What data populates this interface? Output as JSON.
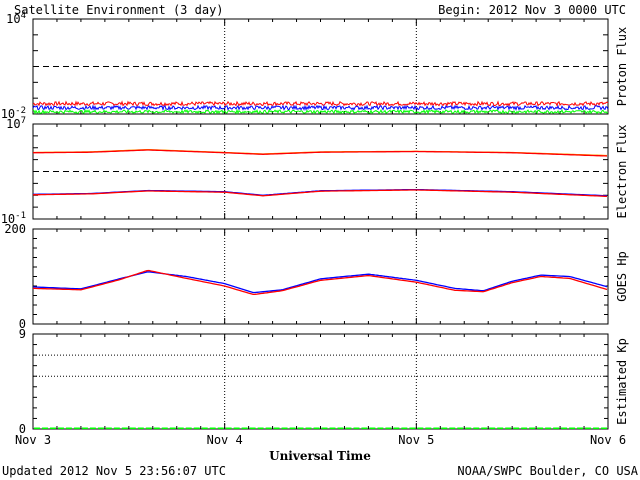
{
  "header": {
    "title": "Satellite Environment (3 day)",
    "begin": "Begin:  2012 Nov 3 0000 UTC"
  },
  "footer": {
    "updated": "Updated 2012 Nov  5 23:56:07 UTC",
    "credit": "NOAA/SWPC Boulder, CO USA"
  },
  "x_axis": {
    "label": "Universal Time",
    "ticks": [
      "Nov 3",
      "Nov 4",
      "Nov 5",
      "Nov 6"
    ]
  },
  "colors": {
    "proton_red": "#ff0000",
    "proton_blue": "#0000ff",
    "proton_green": "#00ff00",
    "electron_orange": "#ff9900",
    "electron_red": "#ff0000",
    "electron_blue": "#0000ff",
    "hp_blue": "#0000ff",
    "hp_red": "#ff0000",
    "kp_green": "#00ff00"
  },
  "chart_data": [
    {
      "type": "line",
      "ylabel": "Proton Flux",
      "scale": "log",
      "yticks": [
        {
          "base": "10",
          "exp": "4",
          "value": 10000
        },
        {
          "base": "10",
          "exp": "-2",
          "value": 0.01
        }
      ],
      "ylim": [
        0.01,
        10000
      ],
      "threshold": 10,
      "x_days": [
        0,
        3
      ],
      "series": [
        {
          "color_key": "proton_red",
          "level": 0.045,
          "noise": 0.12
        },
        {
          "color_key": "proton_blue",
          "level": 0.025,
          "noise": 0.12
        },
        {
          "color_key": "proton_green",
          "level": 0.014,
          "noise": 0.1
        }
      ]
    },
    {
      "type": "line",
      "ylabel": "Electron Flux",
      "scale": "log",
      "yticks": [
        {
          "base": "10",
          "exp": "7",
          "value": 10000000
        },
        {
          "base": "10",
          "exp": "-1",
          "value": 0.1
        }
      ],
      "ylim": [
        0.1,
        10000000
      ],
      "threshold": 1000,
      "x_days": [
        0,
        3
      ],
      "series": [
        {
          "color_key": "electron_orange",
          "x": [
            0,
            0.3,
            0.6,
            1.0,
            1.2,
            1.5,
            2.0,
            2.5,
            3.0
          ],
          "y": [
            40000,
            45000,
            70000,
            40000,
            30000,
            45000,
            50000,
            40000,
            22000
          ]
        },
        {
          "color_key": "electron_red",
          "x": [
            0,
            0.3,
            0.6,
            1.0,
            1.2,
            1.5,
            2.0,
            2.5,
            3.0
          ],
          "y": [
            38000,
            42000,
            65000,
            38000,
            28000,
            42000,
            48000,
            38000,
            20000
          ]
        },
        {
          "color_key": "electron_blue",
          "x": [
            0,
            0.3,
            0.6,
            1.0,
            1.2,
            1.5,
            2.0,
            2.5,
            3.0
          ],
          "y": [
            12,
            14,
            25,
            20,
            10,
            24,
            30,
            20,
            9
          ]
        },
        {
          "color_key": "electron_red",
          "x": [
            0,
            0.3,
            0.6,
            1.0,
            1.2,
            1.5,
            2.0,
            2.5,
            3.0
          ],
          "y": [
            11,
            13,
            23,
            18,
            9,
            22,
            28,
            18,
            8
          ]
        }
      ]
    },
    {
      "type": "line",
      "ylabel": "GOES Hp",
      "scale": "linear",
      "yticks": [
        {
          "label": "200",
          "value": 200
        },
        {
          "label": "0",
          "value": 0
        }
      ],
      "ylim": [
        0,
        200
      ],
      "x_days": [
        0,
        3
      ],
      "series": [
        {
          "color_key": "hp_blue",
          "x": [
            0,
            0.25,
            0.45,
            0.6,
            0.8,
            1.0,
            1.15,
            1.3,
            1.5,
            1.75,
            2.0,
            2.2,
            2.35,
            2.5,
            2.65,
            2.8,
            3.0
          ],
          "y": [
            78,
            74,
            95,
            110,
            100,
            85,
            66,
            72,
            95,
            105,
            92,
            75,
            70,
            90,
            103,
            100,
            78
          ]
        },
        {
          "color_key": "hp_red",
          "x": [
            0,
            0.25,
            0.45,
            0.6,
            0.8,
            1.0,
            1.15,
            1.3,
            1.5,
            1.75,
            2.0,
            2.2,
            2.35,
            2.5,
            2.65,
            2.8,
            3.0
          ],
          "y": [
            75,
            72,
            93,
            113,
            96,
            80,
            62,
            70,
            92,
            102,
            88,
            71,
            68,
            87,
            100,
            96,
            72
          ]
        }
      ]
    },
    {
      "type": "bar",
      "ylabel": "Estimated Kp",
      "scale": "linear",
      "yticks": [
        {
          "label": "9",
          "value": 9
        },
        {
          "label": "0",
          "value": 0
        }
      ],
      "ylim": [
        0,
        9
      ],
      "dotted_levels": [
        5,
        7,
        9
      ],
      "interval_hours": 3,
      "values": [
        0,
        0,
        0,
        0,
        0,
        0,
        0,
        0,
        0,
        0,
        0,
        0,
        0,
        0,
        0,
        0,
        0,
        0,
        0,
        0,
        0,
        0,
        0,
        0,
        0,
        0,
        0,
        0,
        0,
        0,
        0,
        0,
        0,
        0,
        0,
        0,
        0,
        0,
        0,
        0,
        0,
        0,
        0,
        0,
        0,
        0,
        0,
        0,
        0,
        0,
        0,
        0,
        0,
        0,
        0,
        0,
        0,
        0,
        0,
        0,
        0,
        0,
        0,
        0,
        0,
        0,
        0,
        0,
        0,
        0,
        0,
        0
      ]
    }
  ]
}
